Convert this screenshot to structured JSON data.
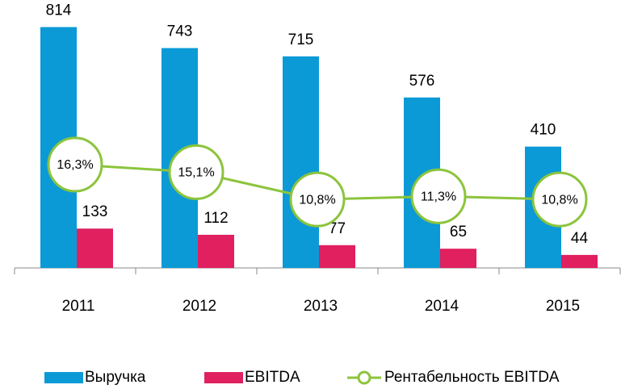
{
  "chart_data": {
    "type": "bar",
    "categories": [
      "2011",
      "2012",
      "2013",
      "2014",
      "2015"
    ],
    "series": [
      {
        "name": "Выручка",
        "color": "#0b9ad6",
        "values": [
          814,
          743,
          715,
          576,
          410
        ]
      },
      {
        "name": "EBITDA",
        "color": "#e0205f",
        "values": [
          133,
          112,
          77,
          65,
          44
        ]
      },
      {
        "name": "Рентабельность EBITDA",
        "type": "line",
        "axis": "y2",
        "color": "#8cc43c",
        "values": [
          16.3,
          15.1,
          10.8,
          11.3,
          10.8
        ],
        "value_labels": [
          "16,3%",
          "15,1%",
          "10,8%",
          "11,3%",
          "10,8%"
        ]
      }
    ],
    "ylim": [
      0,
      900
    ],
    "y2lim": [
      0,
      42
    ],
    "legend": "bottom"
  }
}
